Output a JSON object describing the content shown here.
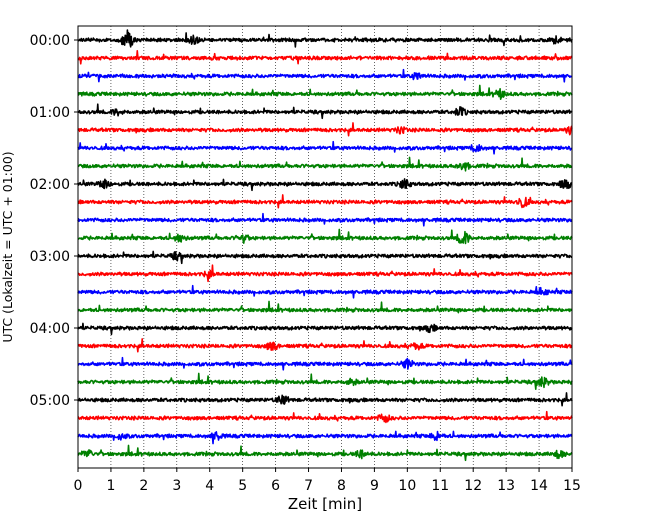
{
  "chart_data": {
    "type": "line",
    "title": "",
    "xlabel": "Zeit  [min]",
    "ylabel": "UTC (Lokalzeit = UTC + 01:00)",
    "xlim": [
      0,
      15
    ],
    "x_ticks": [
      0,
      1,
      2,
      3,
      4,
      5,
      6,
      7,
      8,
      9,
      10,
      11,
      12,
      13,
      14,
      15
    ],
    "y_ticks": [
      "00:00",
      "01:00",
      "02:00",
      "03:00",
      "04:00",
      "05:00"
    ],
    "grid": "vertical-dotted",
    "trace_colors": [
      "#000000",
      "#ff0000",
      "#0000ff",
      "#008000"
    ],
    "trace_start_times": [
      "00:00",
      "00:15",
      "00:30",
      "00:45",
      "01:00",
      "01:15",
      "01:30",
      "01:45",
      "02:00",
      "02:15",
      "02:30",
      "02:45",
      "03:00",
      "03:15",
      "03:30",
      "03:45",
      "04:00",
      "04:15",
      "04:30",
      "04:45",
      "05:00",
      "05:15",
      "05:30",
      "05:45"
    ],
    "events": [
      {
        "trace": 0,
        "x": 1.5,
        "amp": 1.0
      },
      {
        "trace": 0,
        "x": 3.5,
        "amp": 0.45
      },
      {
        "trace": 0,
        "x": 14.5,
        "amp": 0.35
      },
      {
        "trace": 2,
        "x": 10.3,
        "amp": 0.35
      },
      {
        "trace": 3,
        "x": 12.8,
        "amp": 0.45
      },
      {
        "trace": 4,
        "x": 11.6,
        "amp": 0.45
      },
      {
        "trace": 4,
        "x": 1.2,
        "amp": 0.3
      },
      {
        "trace": 5,
        "x": 15.0,
        "amp": 0.45
      },
      {
        "trace": 5,
        "x": 9.8,
        "amp": 0.3
      },
      {
        "trace": 6,
        "x": 12.1,
        "amp": 0.4
      },
      {
        "trace": 7,
        "x": 11.7,
        "amp": 0.5
      },
      {
        "trace": 8,
        "x": 0.8,
        "amp": 0.45
      },
      {
        "trace": 8,
        "x": 9.9,
        "amp": 0.5
      },
      {
        "trace": 8,
        "x": 14.8,
        "amp": 0.45
      },
      {
        "trace": 9,
        "x": 13.5,
        "amp": 0.55
      },
      {
        "trace": 11,
        "x": 3.1,
        "amp": 0.4
      },
      {
        "trace": 11,
        "x": 5.0,
        "amp": 0.45
      },
      {
        "trace": 11,
        "x": 11.7,
        "amp": 0.75
      },
      {
        "trace": 12,
        "x": 3.0,
        "amp": 0.35
      },
      {
        "trace": 13,
        "x": 4.0,
        "amp": 0.3
      },
      {
        "trace": 14,
        "x": 14.1,
        "amp": 0.35
      },
      {
        "trace": 16,
        "x": 10.7,
        "amp": 0.35
      },
      {
        "trace": 17,
        "x": 5.9,
        "amp": 0.45
      },
      {
        "trace": 17,
        "x": 10.3,
        "amp": 0.3
      },
      {
        "trace": 18,
        "x": 10.0,
        "amp": 0.5
      },
      {
        "trace": 19,
        "x": 14.1,
        "amp": 0.55
      },
      {
        "trace": 19,
        "x": 8.3,
        "amp": 0.3
      },
      {
        "trace": 20,
        "x": 6.2,
        "amp": 0.5
      },
      {
        "trace": 21,
        "x": 9.3,
        "amp": 0.45
      },
      {
        "trace": 22,
        "x": 4.2,
        "amp": 0.45
      },
      {
        "trace": 22,
        "x": 10.9,
        "amp": 0.45
      },
      {
        "trace": 22,
        "x": 1.3,
        "amp": 0.3
      },
      {
        "trace": 23,
        "x": 0.3,
        "amp": 0.4
      },
      {
        "trace": 23,
        "x": 8.6,
        "amp": 0.4
      },
      {
        "trace": 23,
        "x": 14.6,
        "amp": 0.4
      }
    ]
  }
}
